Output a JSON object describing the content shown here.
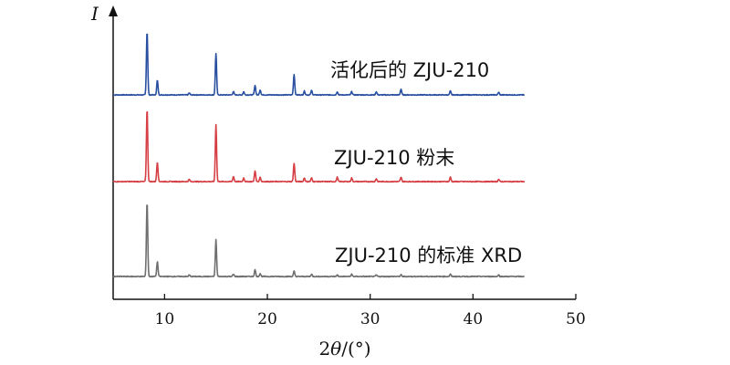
{
  "chart_data": {
    "type": "line",
    "xlabel": "2θ/(°)",
    "ylabel": "I",
    "xlim": [
      5,
      50
    ],
    "xticks": [
      10,
      20,
      30,
      40,
      50
    ],
    "x_range_plotted": [
      5,
      45
    ],
    "grid": false,
    "series": [
      {
        "name": "活化后的 ZJU-210",
        "color": "#2950a0",
        "baseline": 0.0,
        "peaks": [
          [
            8.3,
            1.0
          ],
          [
            9.3,
            0.23
          ],
          [
            12.4,
            0.03
          ],
          [
            15.0,
            0.65
          ],
          [
            16.7,
            0.05
          ],
          [
            17.7,
            0.05
          ],
          [
            18.8,
            0.15
          ],
          [
            19.3,
            0.08
          ],
          [
            22.6,
            0.32
          ],
          [
            23.6,
            0.06
          ],
          [
            24.3,
            0.07
          ],
          [
            26.8,
            0.05
          ],
          [
            28.2,
            0.05
          ],
          [
            30.6,
            0.05
          ],
          [
            33.0,
            0.09
          ],
          [
            37.8,
            0.06
          ],
          [
            42.5,
            0.04
          ]
        ]
      },
      {
        "name": "ZJU-210 粉末",
        "color": "#d64045",
        "baseline": 0.0,
        "peaks": [
          [
            8.3,
            1.0
          ],
          [
            9.3,
            0.27
          ],
          [
            12.4,
            0.03
          ],
          [
            15.0,
            0.78
          ],
          [
            16.7,
            0.07
          ],
          [
            17.7,
            0.05
          ],
          [
            18.8,
            0.15
          ],
          [
            19.3,
            0.06
          ],
          [
            22.6,
            0.25
          ],
          [
            23.6,
            0.05
          ],
          [
            24.3,
            0.05
          ],
          [
            26.8,
            0.06
          ],
          [
            28.2,
            0.05
          ],
          [
            30.6,
            0.04
          ],
          [
            33.0,
            0.06
          ],
          [
            37.8,
            0.06
          ],
          [
            42.5,
            0.03
          ]
        ]
      },
      {
        "name": "ZJU-210 的标准 XRD",
        "color": "#707070",
        "baseline": 0.0,
        "peaks": [
          [
            8.3,
            1.0
          ],
          [
            9.3,
            0.2
          ],
          [
            12.4,
            0.02
          ],
          [
            15.0,
            0.49
          ],
          [
            16.7,
            0.03
          ],
          [
            18.8,
            0.09
          ],
          [
            19.3,
            0.04
          ],
          [
            22.6,
            0.07
          ],
          [
            24.3,
            0.03
          ],
          [
            26.8,
            0.02
          ],
          [
            28.2,
            0.03
          ],
          [
            30.6,
            0.02
          ],
          [
            33.0,
            0.02
          ],
          [
            37.8,
            0.03
          ],
          [
            42.5,
            0.02
          ]
        ]
      }
    ]
  }
}
